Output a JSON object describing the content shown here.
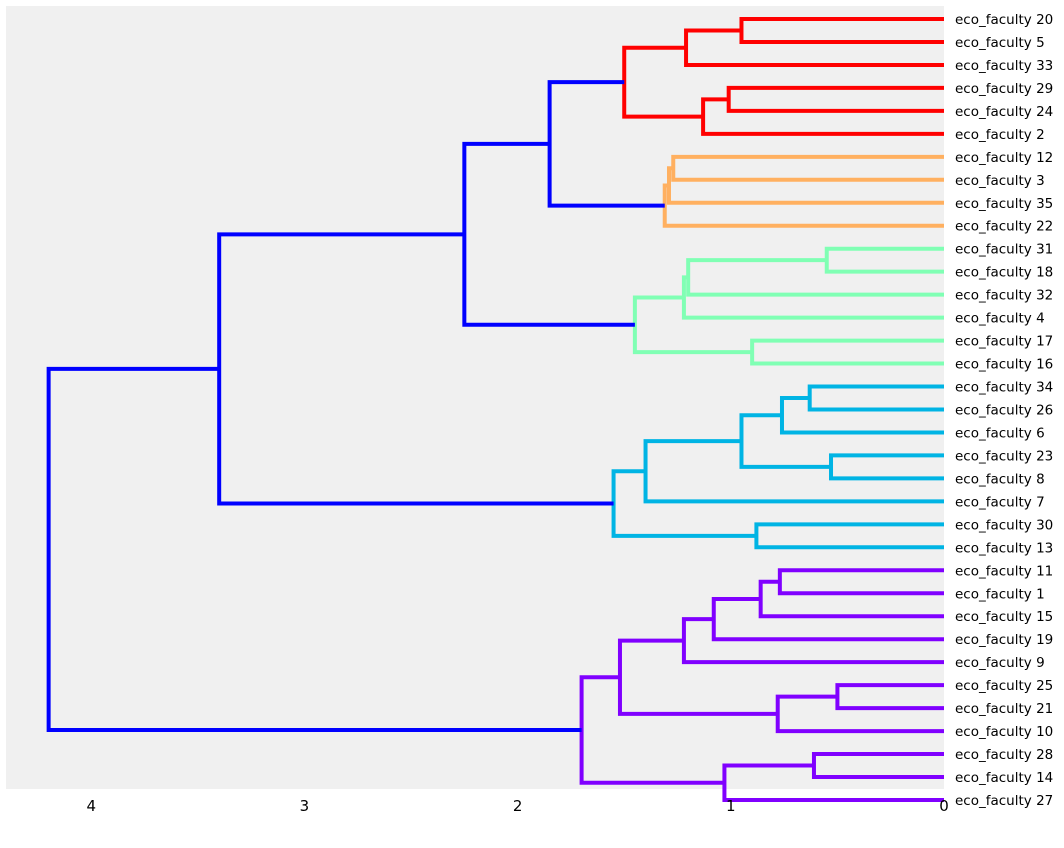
{
  "chart_data": {
    "type": "dendrogram",
    "orientation": "left",
    "title": "",
    "xlabel": "",
    "ylabel": "",
    "xlim": [
      4.4,
      0
    ],
    "x_ticks": [
      4,
      3,
      2,
      1,
      0
    ],
    "grid": false,
    "background": "#f0f0f0",
    "leaves": [
      "eco_faculty 20",
      "eco_faculty 5",
      "eco_faculty 33",
      "eco_faculty 29",
      "eco_faculty 24",
      "eco_faculty 2",
      "eco_faculty 12",
      "eco_faculty 3",
      "eco_faculty 35",
      "eco_faculty 22",
      "eco_faculty 31",
      "eco_faculty 18",
      "eco_faculty 32",
      "eco_faculty 4",
      "eco_faculty 17",
      "eco_faculty 16",
      "eco_faculty 34",
      "eco_faculty 26",
      "eco_faculty 6",
      "eco_faculty 23",
      "eco_faculty 8",
      "eco_faculty 7",
      "eco_faculty 30",
      "eco_faculty 13",
      "eco_faculty 11",
      "eco_faculty 1",
      "eco_faculty 15",
      "eco_faculty 19",
      "eco_faculty 9",
      "eco_faculty 25",
      "eco_faculty 21",
      "eco_faculty 10",
      "eco_faculty 28",
      "eco_faculty 14",
      "eco_faculty 27"
    ],
    "colors": {
      "red": "#ff0000",
      "orange": "#ffb060",
      "green": "#80ffb4",
      "cyan": "#00b4e4",
      "purple": "#8000ff",
      "blue": "#0000ff"
    },
    "merges": [
      {
        "left": 0,
        "right": 1,
        "height": 0.95,
        "color": "red"
      },
      {
        "left": "m0",
        "right": 2,
        "height": 1.21,
        "color": "red"
      },
      {
        "left": 3,
        "right": 4,
        "height": 1.01,
        "color": "red"
      },
      {
        "left": "m2",
        "right": 5,
        "height": 1.13,
        "color": "red"
      },
      {
        "left": "m1",
        "right": "m3",
        "height": 1.5,
        "color": "red"
      },
      {
        "left": 6,
        "right": 7,
        "height": 1.27,
        "color": "orange"
      },
      {
        "left": "m5",
        "right": 8,
        "height": 1.29,
        "color": "orange"
      },
      {
        "left": "m6",
        "right": 9,
        "height": 1.31,
        "color": "orange"
      },
      {
        "left": "m4",
        "right": "m7",
        "height": 1.85,
        "color": "blue"
      },
      {
        "left": 10,
        "right": 11,
        "height": 0.55,
        "color": "green"
      },
      {
        "left": "m9",
        "right": 12,
        "height": 1.2,
        "color": "green"
      },
      {
        "left": "m10",
        "right": 13,
        "height": 1.22,
        "color": "green"
      },
      {
        "left": 14,
        "right": 15,
        "height": 0.9,
        "color": "green"
      },
      {
        "left": "m11",
        "right": "m12",
        "height": 1.45,
        "color": "green"
      },
      {
        "left": "m8",
        "right": "m13",
        "height": 2.25,
        "color": "blue"
      },
      {
        "left": 16,
        "right": 17,
        "height": 0.63,
        "color": "cyan"
      },
      {
        "left": "m15",
        "right": 18,
        "height": 0.76,
        "color": "cyan"
      },
      {
        "left": 19,
        "right": 20,
        "height": 0.53,
        "color": "cyan"
      },
      {
        "left": "m16",
        "right": "m17",
        "height": 0.95,
        "color": "cyan"
      },
      {
        "left": "m18",
        "right": 21,
        "height": 1.4,
        "color": "cyan"
      },
      {
        "left": 22,
        "right": 23,
        "height": 0.88,
        "color": "cyan"
      },
      {
        "left": "m19",
        "right": "m20",
        "height": 1.55,
        "color": "cyan"
      },
      {
        "left": "m14",
        "right": "m21",
        "height": 3.4,
        "color": "blue"
      },
      {
        "left": 24,
        "right": 25,
        "height": 0.77,
        "color": "purple"
      },
      {
        "left": "m23",
        "right": 26,
        "height": 0.86,
        "color": "purple"
      },
      {
        "left": "m24",
        "right": 27,
        "height": 1.08,
        "color": "purple"
      },
      {
        "left": "m25",
        "right": 28,
        "height": 1.22,
        "color": "purple"
      },
      {
        "left": 29,
        "right": 30,
        "height": 0.5,
        "color": "purple"
      },
      {
        "left": "m27",
        "right": 31,
        "height": 0.78,
        "color": "purple"
      },
      {
        "left": "m26",
        "right": "m28",
        "height": 1.52,
        "color": "purple"
      },
      {
        "left": 32,
        "right": 33,
        "height": 0.61,
        "color": "purple"
      },
      {
        "left": "m30",
        "right": 34,
        "height": 1.03,
        "color": "purple"
      },
      {
        "left": "m29",
        "right": "m31",
        "height": 1.7,
        "color": "purple"
      },
      {
        "left": "m22",
        "right": "m32",
        "height": 4.2,
        "color": "blue"
      }
    ]
  }
}
